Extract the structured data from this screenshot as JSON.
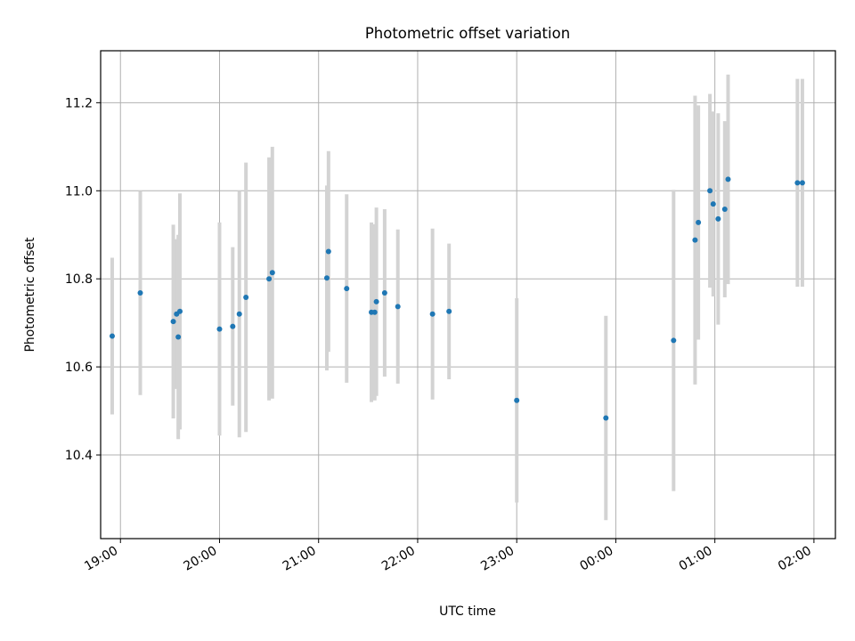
{
  "chart_data": {
    "type": "scatter",
    "title": "Photometric offset variation",
    "xlabel": "UTC time",
    "ylabel": "Photometric offset",
    "xlim": [
      "18:48",
      "02:13"
    ],
    "ylim": [
      10.21,
      11.318
    ],
    "x_ticks": [
      "19:00",
      "20:00",
      "21:00",
      "22:00",
      "23:00",
      "00:00",
      "01:00",
      "02:00"
    ],
    "y_ticks": [
      "10.4",
      "10.6",
      "10.8",
      "11.0",
      "11.2"
    ],
    "grid": true,
    "errorbar_color": "#d3d3d3",
    "point_color": "#1f77b4",
    "points": [
      {
        "x": "18:55",
        "y": 10.67,
        "yerr": 0.178
      },
      {
        "x": "19:12",
        "y": 10.768,
        "yerr": 0.232
      },
      {
        "x": "19:32",
        "y": 10.703,
        "yerr": 0.22
      },
      {
        "x": "19:34",
        "y": 10.72,
        "yerr": 0.17
      },
      {
        "x": "19:35",
        "y": 10.668,
        "yerr": 0.232
      },
      {
        "x": "19:36",
        "y": 10.726,
        "yerr": 0.268
      },
      {
        "x": "20:00",
        "y": 10.686,
        "yerr": 0.242
      },
      {
        "x": "20:08",
        "y": 10.692,
        "yerr": 0.18
      },
      {
        "x": "20:12",
        "y": 10.72,
        "yerr": 0.28
      },
      {
        "x": "20:16",
        "y": 10.758,
        "yerr": 0.306
      },
      {
        "x": "20:30",
        "y": 10.8,
        "yerr": 0.276
      },
      {
        "x": "20:32",
        "y": 10.814,
        "yerr": 0.286
      },
      {
        "x": "21:05",
        "y": 10.802,
        "yerr": 0.21
      },
      {
        "x": "21:06",
        "y": 10.862,
        "yerr": 0.228
      },
      {
        "x": "21:17",
        "y": 10.778,
        "yerr": 0.214
      },
      {
        "x": "21:32",
        "y": 10.724,
        "yerr": 0.204
      },
      {
        "x": "21:34",
        "y": 10.724,
        "yerr": 0.2
      },
      {
        "x": "21:35",
        "y": 10.748,
        "yerr": 0.214
      },
      {
        "x": "21:40",
        "y": 10.768,
        "yerr": 0.19
      },
      {
        "x": "21:48",
        "y": 10.737,
        "yerr": 0.175
      },
      {
        "x": "22:09",
        "y": 10.72,
        "yerr": 0.194
      },
      {
        "x": "22:19",
        "y": 10.726,
        "yerr": 0.154
      },
      {
        "x": "23:00",
        "y": 10.524,
        "yerr": 0.232
      },
      {
        "x": "23:54",
        "y": 10.484,
        "yerr": 0.232
      },
      {
        "x": "00:35",
        "y": 10.66,
        "yerr": 0.342
      },
      {
        "x": "00:48",
        "y": 10.888,
        "yerr": 0.328
      },
      {
        "x": "00:50",
        "y": 10.928,
        "yerr": 0.266
      },
      {
        "x": "00:57",
        "y": 11.0,
        "yerr": 0.22
      },
      {
        "x": "00:59",
        "y": 10.97,
        "yerr": 0.21
      },
      {
        "x": "01:02",
        "y": 10.936,
        "yerr": 0.24
      },
      {
        "x": "01:06",
        "y": 10.958,
        "yerr": 0.2
      },
      {
        "x": "01:08",
        "y": 11.026,
        "yerr": 0.238
      },
      {
        "x": "01:50",
        "y": 11.018,
        "yerr": 0.236
      },
      {
        "x": "01:53",
        "y": 11.018,
        "yerr": 0.236
      }
    ]
  }
}
